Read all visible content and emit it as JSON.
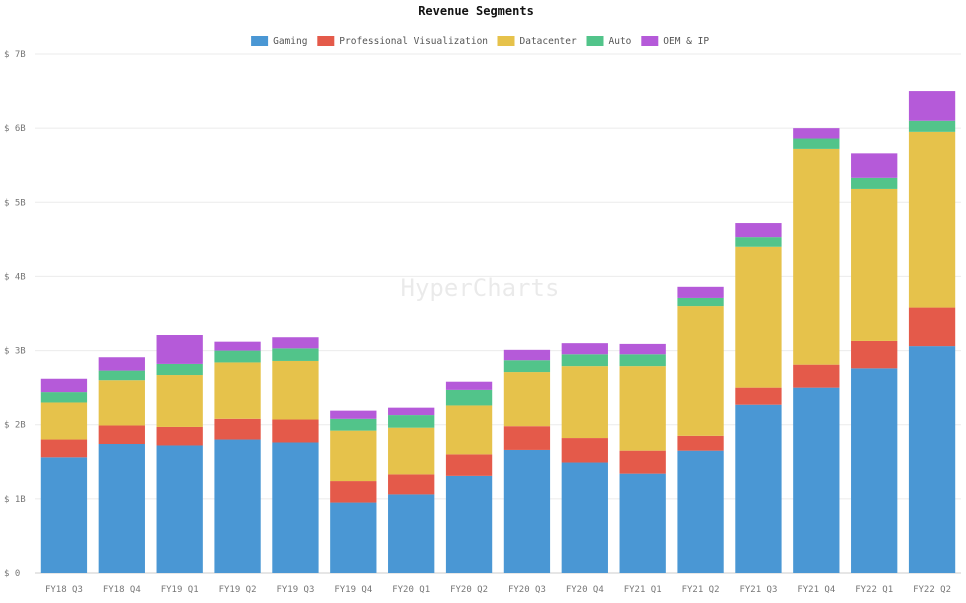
{
  "chart_data": {
    "type": "bar",
    "stacked": true,
    "title": "Revenue Segments",
    "watermark": "HyperCharts",
    "legend_position": "top-center",
    "grid": true,
    "ylim": [
      0,
      7
    ],
    "y_ticks": [
      0,
      1,
      2,
      3,
      4,
      5,
      6,
      7
    ],
    "y_tick_labels": [
      "$ 0",
      "$ 1B",
      "$ 2B",
      "$ 3B",
      "$ 4B",
      "$ 5B",
      "$ 6B",
      "$ 7B"
    ],
    "categories": [
      "FY18 Q3",
      "FY18 Q4",
      "FY19 Q1",
      "FY19 Q2",
      "FY19 Q3",
      "FY19 Q4",
      "FY20 Q1",
      "FY20 Q2",
      "FY20 Q3",
      "FY20 Q4",
      "FY21 Q1",
      "FY21 Q2",
      "FY21 Q3",
      "FY21 Q4",
      "FY22 Q1",
      "FY22 Q2"
    ],
    "series": [
      {
        "name": "Gaming",
        "color": "#4a97d4",
        "values": [
          1.56,
          1.74,
          1.72,
          1.8,
          1.76,
          0.95,
          1.06,
          1.31,
          1.66,
          1.49,
          1.34,
          1.65,
          2.27,
          2.5,
          2.76,
          3.06
        ]
      },
      {
        "name": "Professional Visualization",
        "color": "#e45a4a",
        "values": [
          0.24,
          0.25,
          0.25,
          0.28,
          0.31,
          0.29,
          0.27,
          0.29,
          0.32,
          0.33,
          0.31,
          0.2,
          0.23,
          0.31,
          0.37,
          0.52
        ]
      },
      {
        "name": "Datacenter",
        "color": "#e6c24b",
        "values": [
          0.5,
          0.61,
          0.7,
          0.76,
          0.79,
          0.68,
          0.63,
          0.66,
          0.73,
          0.97,
          1.14,
          1.75,
          1.9,
          2.91,
          2.05,
          2.37
        ]
      },
      {
        "name": "Auto",
        "color": "#52c48a",
        "values": [
          0.14,
          0.13,
          0.15,
          0.16,
          0.17,
          0.16,
          0.17,
          0.21,
          0.16,
          0.16,
          0.16,
          0.11,
          0.13,
          0.14,
          0.15,
          0.15
        ]
      },
      {
        "name": "OEM & IP",
        "color": "#b55ad9",
        "values": [
          0.18,
          0.18,
          0.39,
          0.12,
          0.15,
          0.11,
          0.1,
          0.11,
          0.14,
          0.15,
          0.14,
          0.15,
          0.19,
          0.14,
          0.33,
          0.4
        ]
      }
    ]
  }
}
